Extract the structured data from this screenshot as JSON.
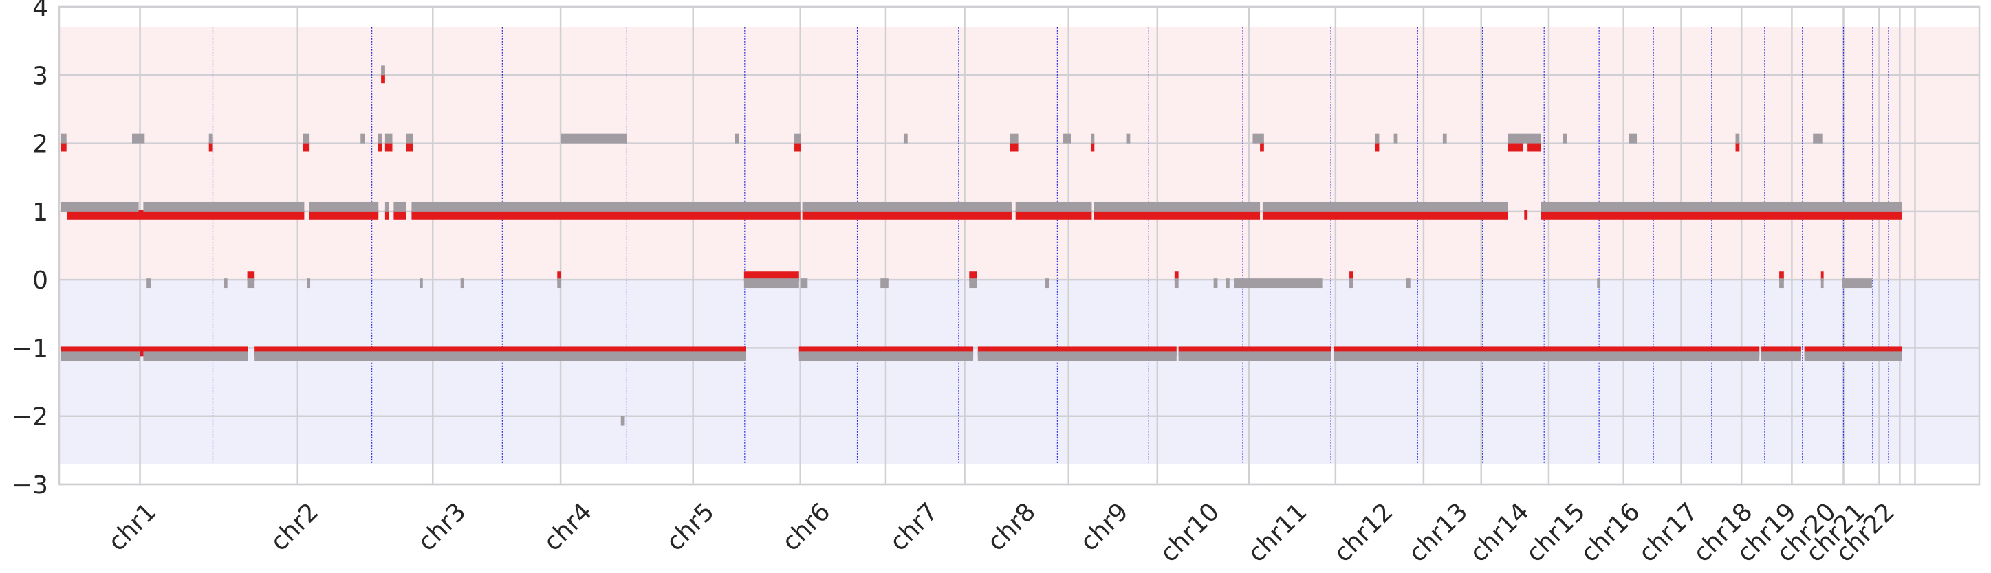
{
  "chart_data": {
    "type": "scatter",
    "title": "",
    "xlabel": "",
    "ylabel": "",
    "ylim": [
      -3,
      4
    ],
    "yticks": [
      -3,
      -2,
      -1,
      0,
      1,
      2,
      3,
      4
    ],
    "ytick_labels": [
      "−3",
      "−2",
      "−1",
      "0",
      "1",
      "2",
      "3",
      "4"
    ],
    "grid": true,
    "legend": "none",
    "colors": {
      "band_positive": "#fdeff0",
      "band_negative": "#efeffc",
      "grid": "#cfcfd4",
      "series_primary": "#e31a1c",
      "series_secondary": "#a09ca2",
      "boundary": "#2a2ae0"
    },
    "x_range": [
      0,
      2895
    ],
    "shaded_bands": [
      {
        "from": 0,
        "to": 3.7,
        "color": "band_positive"
      },
      {
        "from": -2.7,
        "to": 0,
        "color": "band_negative"
      }
    ],
    "chromosomes": [
      {
        "label": "chr1",
        "start": 0,
        "end": 235
      },
      {
        "label": "chr2",
        "start": 235,
        "end": 490
      },
      {
        "label": "chr3",
        "start": 490,
        "end": 680
      },
      {
        "label": "chr4",
        "start": 680,
        "end": 870
      },
      {
        "label": "chr5",
        "start": 870,
        "end": 1050
      },
      {
        "label": "chr6",
        "start": 1050,
        "end": 1220
      },
      {
        "label": "chr7",
        "start": 1220,
        "end": 1375
      },
      {
        "label": "chr8",
        "start": 1375,
        "end": 1515
      },
      {
        "label": "chr9",
        "start": 1515,
        "end": 1655
      },
      {
        "label": "chr10",
        "start": 1655,
        "end": 1790
      },
      {
        "label": "chr11",
        "start": 1790,
        "end": 1920
      },
      {
        "label": "chr12",
        "start": 1920,
        "end": 2050
      },
      {
        "label": "chr13",
        "start": 2050,
        "end": 2145
      },
      {
        "label": "chr14",
        "start": 2145,
        "end": 2235
      },
      {
        "label": "chr15",
        "start": 2235,
        "end": 2315
      },
      {
        "label": "chr16",
        "start": 2315,
        "end": 2400
      },
      {
        "label": "chr17",
        "start": 2400,
        "end": 2490
      },
      {
        "label": "chr18",
        "start": 2490,
        "end": 2565
      },
      {
        "label": "chr19",
        "start": 2565,
        "end": 2622
      },
      {
        "label": "chr20",
        "start": 2622,
        "end": 2685
      },
      {
        "label": "chr21",
        "start": 2685,
        "end": 2710
      },
      {
        "label": "chr22",
        "start": 2710,
        "end": 2775
      }
    ],
    "x_gridlines": [
      120,
      358,
      562,
      755,
      955,
      1117,
      1246,
      1365,
      1522,
      1656,
      1794,
      1925,
      2058,
      2145,
      2247,
      2360,
      2447,
      2538,
      2614,
      2692,
      2746,
      2777,
      2800
    ],
    "boundary_lines": [
      230,
      470,
      667,
      855,
      1033,
      1203,
      1356,
      1505,
      1643,
      1785,
      1918,
      2049,
      2147,
      2240,
      2323,
      2405,
      2493,
      2573,
      2630,
      2692,
      2736,
      2760
    ],
    "series": [
      {
        "name": "",
        "color": "series_primary",
        "segments": [
          {
            "x0": 0,
            "x1": 120,
            "y": -1.05
          },
          {
            "x0": 120,
            "x1": 283,
            "y": -1.05
          },
          {
            "x0": 293,
            "x1": 1035,
            "y": -1.05
          },
          {
            "x0": 1115,
            "x1": 1378,
            "y": -1.05
          },
          {
            "x0": 1385,
            "x1": 1685,
            "y": -1.05
          },
          {
            "x0": 1688,
            "x1": 1918,
            "y": -1.05
          },
          {
            "x0": 1922,
            "x1": 2565,
            "y": -1.05
          },
          {
            "x0": 2568,
            "x1": 2628,
            "y": -1.05
          },
          {
            "x0": 2633,
            "x1": 2780,
            "y": -1.05
          },
          {
            "x0": 10,
            "x1": 368,
            "y": 0.95
          },
          {
            "x0": 375,
            "x1": 480,
            "y": 0.95
          },
          {
            "x0": 490,
            "x1": 496,
            "y": 0.95
          },
          {
            "x0": 503,
            "x1": 522,
            "y": 0.95
          },
          {
            "x0": 530,
            "x1": 1117,
            "y": 0.95
          },
          {
            "x0": 1120,
            "x1": 1436,
            "y": 0.95
          },
          {
            "x0": 1442,
            "x1": 1557,
            "y": 0.95
          },
          {
            "x0": 1560,
            "x1": 1811,
            "y": 0.95
          },
          {
            "x0": 1815,
            "x1": 2185,
            "y": 0.95
          },
          {
            "x0": 2210,
            "x1": 2215,
            "y": 0.95
          },
          {
            "x0": 2235,
            "x1": 2780,
            "y": 0.95
          },
          {
            "x0": 1032,
            "x1": 1115,
            "y": 0.05
          },
          {
            "x0": 282,
            "x1": 293,
            "y": 0.05
          },
          {
            "x0": 750,
            "x1": 756,
            "y": 0.05
          },
          {
            "x0": 1372,
            "x1": 1384,
            "y": 0.05
          },
          {
            "x0": 1682,
            "x1": 1688,
            "y": 0.05
          },
          {
            "x0": 1946,
            "x1": 1952,
            "y": 0.05
          },
          {
            "x0": 2595,
            "x1": 2602,
            "y": 0.05
          },
          {
            "x0": 2658,
            "x1": 2662,
            "y": 0.05
          },
          {
            "x0": 0,
            "x1": 9,
            "y": 1.95
          },
          {
            "x0": 224,
            "x1": 229,
            "y": 1.95
          },
          {
            "x0": 366,
            "x1": 376,
            "y": 1.95
          },
          {
            "x0": 479,
            "x1": 485,
            "y": 1.95
          },
          {
            "x0": 490,
            "x1": 501,
            "y": 1.95
          },
          {
            "x0": 522,
            "x1": 532,
            "y": 1.95
          },
          {
            "x0": 1108,
            "x1": 1118,
            "y": 1.95
          },
          {
            "x0": 1434,
            "x1": 1446,
            "y": 1.95
          },
          {
            "x0": 1556,
            "x1": 1561,
            "y": 1.95
          },
          {
            "x0": 1811,
            "x1": 1817,
            "y": 1.95
          },
          {
            "x0": 1985,
            "x1": 1991,
            "y": 1.95
          },
          {
            "x0": 2185,
            "x1": 2208,
            "y": 1.95
          },
          {
            "x0": 2215,
            "x1": 2235,
            "y": 1.95
          },
          {
            "x0": 2529,
            "x1": 2535,
            "y": 1.95
          },
          {
            "x0": 484,
            "x1": 490,
            "y": 2.95
          }
        ]
      },
      {
        "name": "",
        "color": "series_secondary",
        "segments": [
          {
            "x0": 0,
            "x1": 120,
            "y": -1.12
          },
          {
            "x0": 125,
            "x1": 283,
            "y": -1.12
          },
          {
            "x0": 293,
            "x1": 1035,
            "y": -1.12
          },
          {
            "x0": 1115,
            "x1": 1378,
            "y": -1.12
          },
          {
            "x0": 1385,
            "x1": 1685,
            "y": -1.12
          },
          {
            "x0": 1688,
            "x1": 1918,
            "y": -1.12
          },
          {
            "x0": 1922,
            "x1": 2565,
            "y": -1.12
          },
          {
            "x0": 2568,
            "x1": 2628,
            "y": -1.12
          },
          {
            "x0": 2633,
            "x1": 2780,
            "y": -1.12
          },
          {
            "x0": 0,
            "x1": 118,
            "y": 1.07
          },
          {
            "x0": 125,
            "x1": 368,
            "y": 1.07
          },
          {
            "x0": 375,
            "x1": 480,
            "y": 1.07
          },
          {
            "x0": 490,
            "x1": 496,
            "y": 1.07
          },
          {
            "x0": 503,
            "x1": 522,
            "y": 1.07
          },
          {
            "x0": 530,
            "x1": 1117,
            "y": 1.07
          },
          {
            "x0": 1120,
            "x1": 1436,
            "y": 1.07
          },
          {
            "x0": 1442,
            "x1": 1557,
            "y": 1.07
          },
          {
            "x0": 1560,
            "x1": 1811,
            "y": 1.07
          },
          {
            "x0": 1815,
            "x1": 2185,
            "y": 1.07
          },
          {
            "x0": 2235,
            "x1": 2780,
            "y": 1.07
          },
          {
            "x0": 1032,
            "x1": 1115,
            "y": -0.05
          },
          {
            "x0": 1772,
            "x1": 1905,
            "y": -0.05
          },
          {
            "x0": 2690,
            "x1": 2735,
            "y": -0.05
          },
          {
            "x0": 130,
            "x1": 136,
            "y": -0.05
          },
          {
            "x0": 247,
            "x1": 252,
            "y": -0.05
          },
          {
            "x0": 282,
            "x1": 293,
            "y": -0.05
          },
          {
            "x0": 372,
            "x1": 377,
            "y": -0.05
          },
          {
            "x0": 542,
            "x1": 547,
            "y": -0.05
          },
          {
            "x0": 604,
            "x1": 609,
            "y": -0.05
          },
          {
            "x0": 750,
            "x1": 756,
            "y": -0.05
          },
          {
            "x0": 1117,
            "x1": 1128,
            "y": -0.05
          },
          {
            "x0": 1238,
            "x1": 1250,
            "y": -0.05
          },
          {
            "x0": 1372,
            "x1": 1384,
            "y": -0.05
          },
          {
            "x0": 1487,
            "x1": 1493,
            "y": -0.05
          },
          {
            "x0": 1682,
            "x1": 1688,
            "y": -0.05
          },
          {
            "x0": 1741,
            "x1": 1747,
            "y": -0.05
          },
          {
            "x0": 1760,
            "x1": 1765,
            "y": -0.05
          },
          {
            "x0": 1946,
            "x1": 1952,
            "y": -0.05
          },
          {
            "x0": 2032,
            "x1": 2038,
            "y": -0.05
          },
          {
            "x0": 2320,
            "x1": 2325,
            "y": -0.05
          },
          {
            "x0": 2595,
            "x1": 2602,
            "y": -0.05
          },
          {
            "x0": 2658,
            "x1": 2662,
            "y": -0.05
          },
          {
            "x0": 0,
            "x1": 9,
            "y": 2.07
          },
          {
            "x0": 108,
            "x1": 127,
            "y": 2.07
          },
          {
            "x0": 224,
            "x1": 229,
            "y": 2.07
          },
          {
            "x0": 366,
            "x1": 376,
            "y": 2.07
          },
          {
            "x0": 453,
            "x1": 460,
            "y": 2.07
          },
          {
            "x0": 479,
            "x1": 485,
            "y": 2.07
          },
          {
            "x0": 490,
            "x1": 501,
            "y": 2.07
          },
          {
            "x0": 522,
            "x1": 532,
            "y": 2.07
          },
          {
            "x0": 755,
            "x1": 855,
            "y": 2.07
          },
          {
            "x0": 1018,
            "x1": 1024,
            "y": 2.07
          },
          {
            "x0": 1108,
            "x1": 1118,
            "y": 2.07
          },
          {
            "x0": 1273,
            "x1": 1279,
            "y": 2.07
          },
          {
            "x0": 1434,
            "x1": 1446,
            "y": 2.07
          },
          {
            "x0": 1514,
            "x1": 1526,
            "y": 2.07
          },
          {
            "x0": 1556,
            "x1": 1561,
            "y": 2.07
          },
          {
            "x0": 1609,
            "x1": 1615,
            "y": 2.07
          },
          {
            "x0": 1800,
            "x1": 1817,
            "y": 2.07
          },
          {
            "x0": 1985,
            "x1": 1991,
            "y": 2.07
          },
          {
            "x0": 2013,
            "x1": 2019,
            "y": 2.07
          },
          {
            "x0": 2087,
            "x1": 2093,
            "y": 2.07
          },
          {
            "x0": 2185,
            "x1": 2235,
            "y": 2.07
          },
          {
            "x0": 2268,
            "x1": 2274,
            "y": 2.07
          },
          {
            "x0": 2368,
            "x1": 2380,
            "y": 2.07
          },
          {
            "x0": 2529,
            "x1": 2535,
            "y": 2.07
          },
          {
            "x0": 2646,
            "x1": 2660,
            "y": 2.07
          },
          {
            "x0": 484,
            "x1": 490,
            "y": 3.07
          },
          {
            "x0": 846,
            "x1": 852,
            "y": -2.07
          }
        ]
      }
    ]
  }
}
